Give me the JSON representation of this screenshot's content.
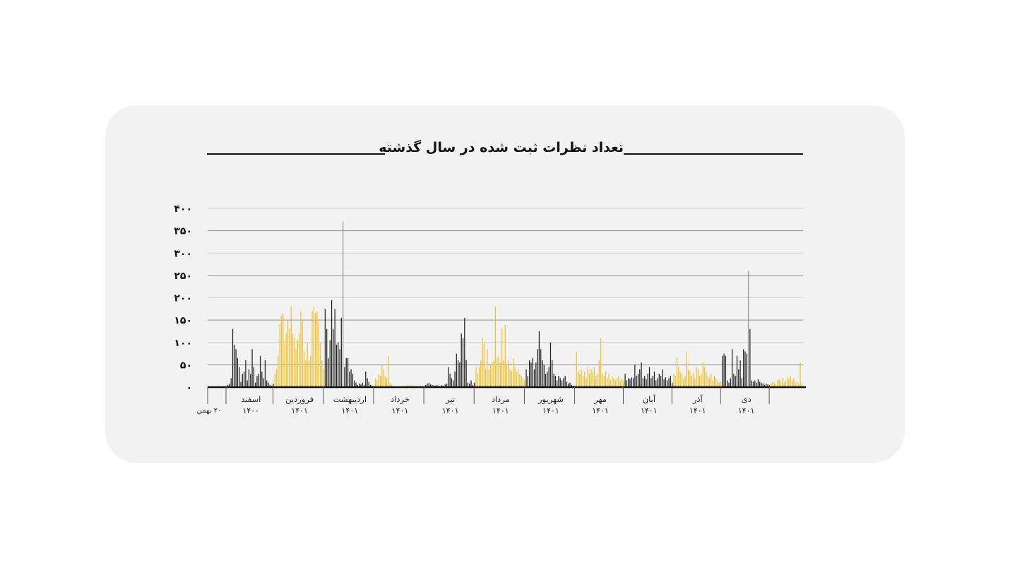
{
  "chart_data": {
    "type": "bar",
    "title": "تعداد نظرات ثبت شده در سال گذشته",
    "xlabel": "",
    "ylabel": "",
    "ylim": [
      0,
      400
    ],
    "yticks": [
      "۰",
      "۵۰",
      "۱۰۰",
      "۱۵۰",
      "۲۰۰",
      "۲۵۰",
      "۳۰۰",
      "۳۵۰",
      "۴۰۰"
    ],
    "grid": true,
    "legend": "none",
    "colors": {
      "yellow": "#f2c12e",
      "black": "#222222",
      "grey": "#9a9a9a"
    },
    "start_label": "۲۰ بهمن",
    "months": [
      {
        "name": "اسفند",
        "year": "۱۴۰۰",
        "days": 29,
        "color": "black",
        "values": [
          5,
          8,
          20,
          130,
          95,
          85,
          65,
          45,
          12,
          30,
          35,
          60,
          15,
          40,
          30,
          85,
          45,
          10,
          25,
          30,
          70,
          35,
          20,
          60,
          15,
          10,
          5,
          3,
          8
        ]
      },
      {
        "name": "فروردین",
        "year": "۱۴۰۱",
        "days": 31,
        "color": "yellow",
        "values": [
          30,
          40,
          70,
          140,
          160,
          165,
          100,
          120,
          150,
          130,
          180,
          120,
          110,
          85,
          105,
          120,
          170,
          150,
          80,
          60,
          100,
          60,
          70,
          170,
          180,
          165,
          170,
          145,
          100,
          60,
          40
        ]
      },
      {
        "name": "اردیبهشت",
        "year": "۱۴۰۱",
        "days": 31,
        "color": "black",
        "values": [
          175,
          130,
          65,
          105,
          195,
          130,
          175,
          95,
          100,
          85,
          155,
          370,
          45,
          65,
          65,
          35,
          40,
          30,
          15,
          10,
          5,
          8,
          6,
          10,
          5,
          35,
          20,
          12,
          5,
          3,
          2
        ]
      },
      {
        "name": "خرداد",
        "year": "۱۴۰۱",
        "days": 31,
        "color": "yellow",
        "values": [
          20,
          15,
          30,
          25,
          50,
          40,
          25,
          20,
          70,
          10,
          5,
          2,
          1,
          1,
          1,
          2,
          1,
          3,
          2,
          3,
          5,
          3,
          4,
          2,
          3,
          2,
          1,
          1,
          3,
          2,
          1
        ]
      },
      {
        "name": "تیر",
        "year": "۱۴۰۱",
        "days": 31,
        "color": "black",
        "values": [
          5,
          8,
          10,
          6,
          5,
          4,
          3,
          5,
          3,
          2,
          4,
          3,
          6,
          8,
          45,
          30,
          20,
          15,
          35,
          75,
          60,
          55,
          120,
          110,
          155,
          60,
          10,
          8,
          15,
          5,
          10
        ]
      },
      {
        "name": "مرداد",
        "year": "۱۴۰۱",
        "days": 31,
        "color": "yellow",
        "values": [
          45,
          30,
          45,
          60,
          110,
          100,
          40,
          85,
          40,
          50,
          55,
          60,
          180,
          65,
          70,
          55,
          130,
          60,
          140,
          50,
          60,
          40,
          35,
          65,
          45,
          35,
          40,
          30,
          25,
          20,
          15
        ]
      },
      {
        "name": "شهریور",
        "year": "۱۴۰۱",
        "days": 31,
        "color": "black",
        "values": [
          40,
          25,
          60,
          55,
          65,
          40,
          55,
          85,
          125,
          85,
          60,
          50,
          30,
          35,
          45,
          100,
          60,
          30,
          25,
          15,
          25,
          20,
          15,
          20,
          25,
          12,
          8,
          10,
          5,
          3,
          2
        ]
      },
      {
        "name": "مهر",
        "year": "۱۴۰۱",
        "days": 30,
        "color": "yellow",
        "values": [
          80,
          35,
          30,
          40,
          25,
          35,
          20,
          45,
          30,
          40,
          35,
          45,
          25,
          30,
          60,
          110,
          30,
          25,
          35,
          20,
          30,
          15,
          25,
          20,
          15,
          20,
          25,
          15,
          20,
          15
        ]
      },
      {
        "name": "آبان",
        "year": "۱۴۰۱",
        "days": 30,
        "color": "black",
        "values": [
          30,
          15,
          20,
          18,
          22,
          20,
          50,
          25,
          30,
          40,
          55,
          20,
          25,
          18,
          30,
          45,
          20,
          25,
          35,
          15,
          20,
          30,
          25,
          40,
          18,
          22,
          15,
          20,
          25,
          10
        ]
      },
      {
        "name": "آذر",
        "year": "۱۴۰۱",
        "days": 30,
        "color": "yellow",
        "values": [
          30,
          25,
          65,
          45,
          35,
          30,
          20,
          25,
          80,
          40,
          35,
          25,
          30,
          20,
          45,
          40,
          25,
          30,
          55,
          45,
          35,
          25,
          20,
          30,
          15,
          25,
          20,
          15,
          10,
          12
        ]
      },
      {
        "name": "دی",
        "year": "۱۴۰۱",
        "days": 30,
        "color": "black",
        "values": [
          70,
          75,
          70,
          15,
          10,
          20,
          85,
          30,
          25,
          70,
          40,
          60,
          20,
          85,
          80,
          75,
          260,
          130,
          15,
          12,
          15,
          10,
          18,
          12,
          10,
          8,
          5,
          8,
          6,
          4
        ]
      }
    ],
    "tail": {
      "color": "yellow",
      "values": [
        8,
        12,
        10,
        6,
        15,
        18,
        12,
        20,
        10,
        15,
        22,
        18,
        25,
        15,
        20,
        10,
        12,
        8,
        55,
        10
      ]
    }
  }
}
